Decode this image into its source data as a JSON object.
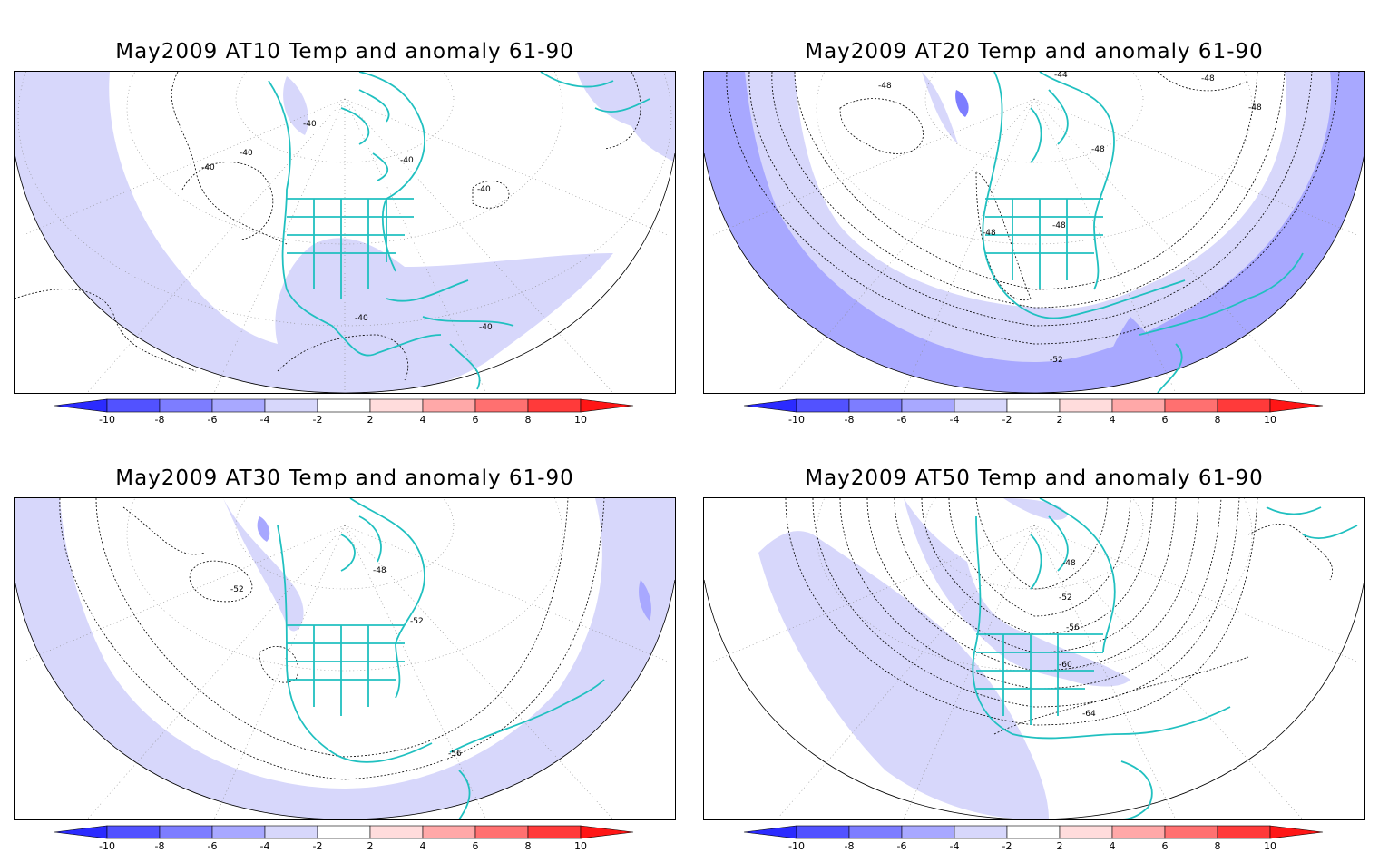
{
  "colors": {
    "anom_neg10": "#2b2bff",
    "anom_neg8": "#5252ff",
    "anom_neg6": "#7d7dff",
    "anom_neg4": "#a8a8ff",
    "anom_neg2": "#d7d7fb",
    "anom_pos2": "#ffdcdc",
    "anom_pos4": "#ffa8a8",
    "anom_pos6": "#ff7070",
    "anom_pos8": "#ff3a3a",
    "anom_pos10": "#ff1616",
    "coast": "#20c0c0",
    "contour": "#000000",
    "grid": "#8a8a8a"
  },
  "colorbar": {
    "ticks": [
      "-10",
      "-8",
      "-6",
      "-4",
      "-2",
      "2",
      "4",
      "6",
      "8",
      "10"
    ]
  },
  "panels": [
    {
      "id": "at10",
      "title": "May2009 AT10 Temp and anomaly 61-90",
      "contour_labels": [
        "-40",
        "-40",
        "-40",
        "-40",
        "-40",
        "-40",
        "-40"
      ]
    },
    {
      "id": "at20",
      "title": "May2009 AT20 Temp and anomaly 61-90",
      "contour_labels": [
        "-44",
        "-48",
        "-48",
        "-48",
        "-48",
        "-48",
        "-48",
        "-52"
      ]
    },
    {
      "id": "at30",
      "title": "May2009 AT30 Temp and anomaly 61-90",
      "contour_labels": [
        "-52",
        "-48",
        "-52",
        "-56"
      ]
    },
    {
      "id": "at50",
      "title": "May2009 AT50 Temp and anomaly 61-90",
      "contour_labels": [
        "-48",
        "-52",
        "-56",
        "-60",
        "-64"
      ]
    }
  ]
}
